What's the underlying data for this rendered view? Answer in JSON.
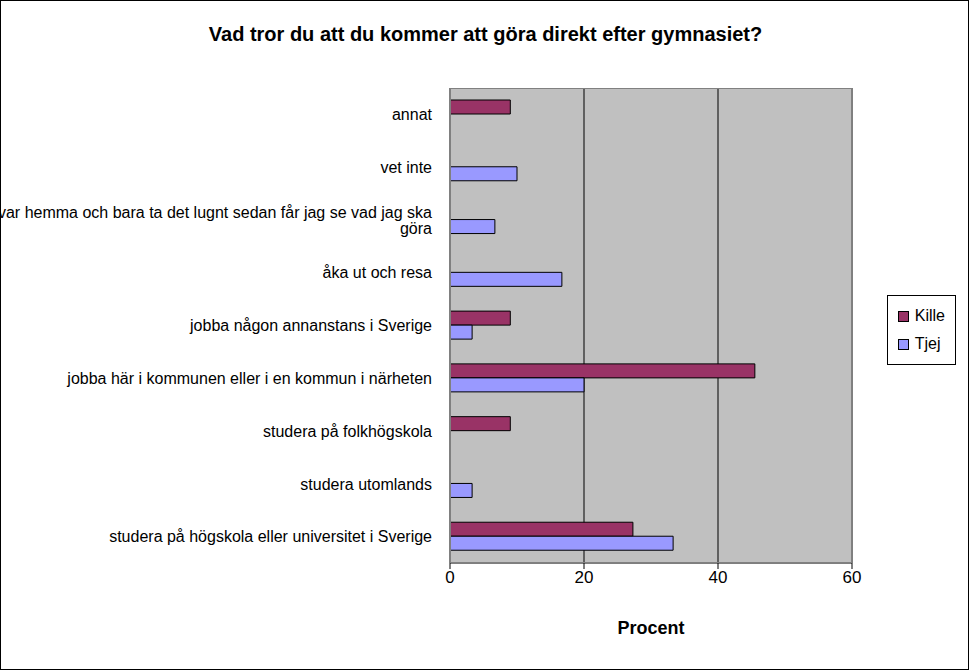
{
  "chart_data": {
    "type": "bar",
    "orientation": "horizontal",
    "title": "Vad tror du att du kommer att göra direkt efter gymnasiet?",
    "x_label": "Procent",
    "categories": [
      "annat",
      "vet inte",
      "bo kvar hemma och bara ta det lugnt sedan får jag se vad jag ska göra",
      "åka ut och resa",
      "jobba någon annanstans i Sverige",
      "jobba här i kommunen eller i en kommun i närheten",
      "studera på folkhögskola",
      "studera utomlands",
      "studera på högskola eller universitet i Sverige"
    ],
    "series": [
      {
        "name": "Kille",
        "color": "#993366",
        "values": [
          9,
          0,
          0,
          0,
          9,
          45.5,
          9,
          0,
          27.3
        ]
      },
      {
        "name": "Tjej",
        "color": "#9999FF",
        "values": [
          0,
          10,
          6.7,
          16.7,
          3.3,
          20,
          0,
          3.3,
          33.3
        ]
      }
    ],
    "xlim": [
      0,
      60
    ],
    "xticks": [
      0,
      20,
      40,
      60
    ],
    "grid": true,
    "legend": "right"
  }
}
